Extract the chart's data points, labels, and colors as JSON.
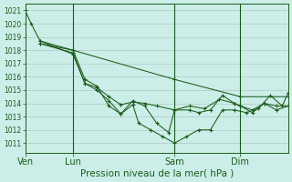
{
  "background_color": "#cceee8",
  "grid_color": "#b0c8c4",
  "line_color": "#1a5c1a",
  "title": "Pression niveau de la mer( hPa )",
  "ylabel_vals": [
    1011,
    1012,
    1013,
    1014,
    1015,
    1016,
    1017,
    1018,
    1019,
    1020,
    1021
  ],
  "ylim": [
    1010.3,
    1021.5
  ],
  "xtick_labels": [
    "Ven",
    "Lun",
    "Sam",
    "Dim"
  ],
  "xtick_positions": [
    0,
    16,
    50,
    72
  ],
  "vline_positions": [
    16,
    50,
    72
  ],
  "series": [
    {
      "x": [
        0,
        2,
        5,
        16,
        50,
        72,
        88
      ],
      "y": [
        1021.0,
        1020.0,
        1018.7,
        1018.0,
        1015.8,
        1014.5,
        1014.5
      ]
    },
    {
      "x": [
        5,
        16,
        20,
        24,
        28,
        32,
        36,
        40,
        44,
        50,
        55,
        60,
        65,
        70,
        72,
        76,
        80,
        84,
        88
      ],
      "y": [
        1018.7,
        1017.7,
        1015.5,
        1015.2,
        1014.5,
        1013.9,
        1014.1,
        1014.0,
        1013.8,
        1013.5,
        1013.8,
        1013.6,
        1014.3,
        1014.0,
        1013.8,
        1013.5,
        1014.0,
        1013.8,
        1013.8
      ]
    },
    {
      "x": [
        5,
        16,
        20,
        24,
        28,
        32,
        36,
        40,
        44,
        48,
        50,
        55,
        58,
        62,
        66,
        70,
        72,
        76,
        80,
        84,
        88
      ],
      "y": [
        1018.5,
        1017.8,
        1015.5,
        1015.0,
        1014.2,
        1013.2,
        1014.2,
        1013.8,
        1012.5,
        1011.8,
        1013.5,
        1013.5,
        1013.3,
        1013.5,
        1014.6,
        1014.0,
        1013.8,
        1013.3,
        1014.0,
        1013.5,
        1013.8
      ]
    },
    {
      "x": [
        5,
        16,
        20,
        24,
        28,
        32,
        36,
        38,
        42,
        46,
        50,
        54,
        58,
        62,
        66,
        70,
        74,
        78,
        82,
        86,
        88
      ],
      "y": [
        1018.5,
        1018.0,
        1015.8,
        1015.3,
        1013.8,
        1013.2,
        1013.9,
        1012.5,
        1012.0,
        1011.5,
        1011.0,
        1011.5,
        1012.0,
        1012.0,
        1013.5,
        1013.5,
        1013.3,
        1013.6,
        1014.6,
        1013.8,
        1014.8
      ]
    }
  ],
  "xlim": [
    0,
    88
  ],
  "figsize": [
    3.2,
    2.0
  ],
  "dpi": 100
}
